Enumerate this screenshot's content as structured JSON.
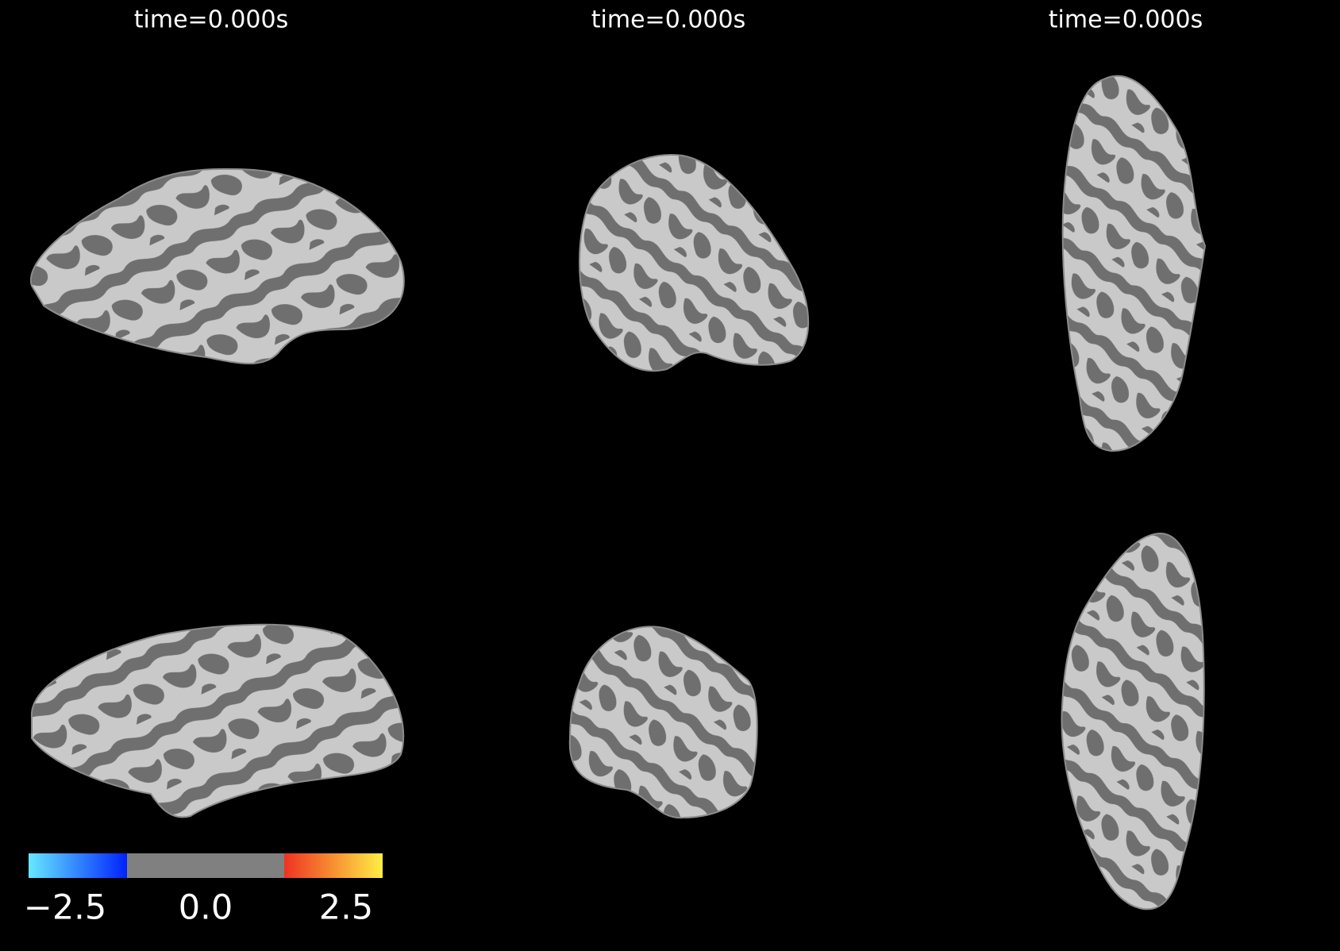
{
  "panels": [
    {
      "title": "time=0.000s"
    },
    {
      "title": "time=0.000s"
    },
    {
      "title": "time=0.000s"
    }
  ],
  "colorbar": {
    "lim": [
      -3.15,
      3.15
    ],
    "threshold": 1.4,
    "colors": [
      "#66e8ff",
      "#0022ff",
      "#808080",
      "#ee3322",
      "#ffee44"
    ],
    "ticks": [
      {
        "value": -2.5,
        "label": "−2.5"
      },
      {
        "value": 0,
        "label": "0.0"
      },
      2.5
    ]
  }
}
